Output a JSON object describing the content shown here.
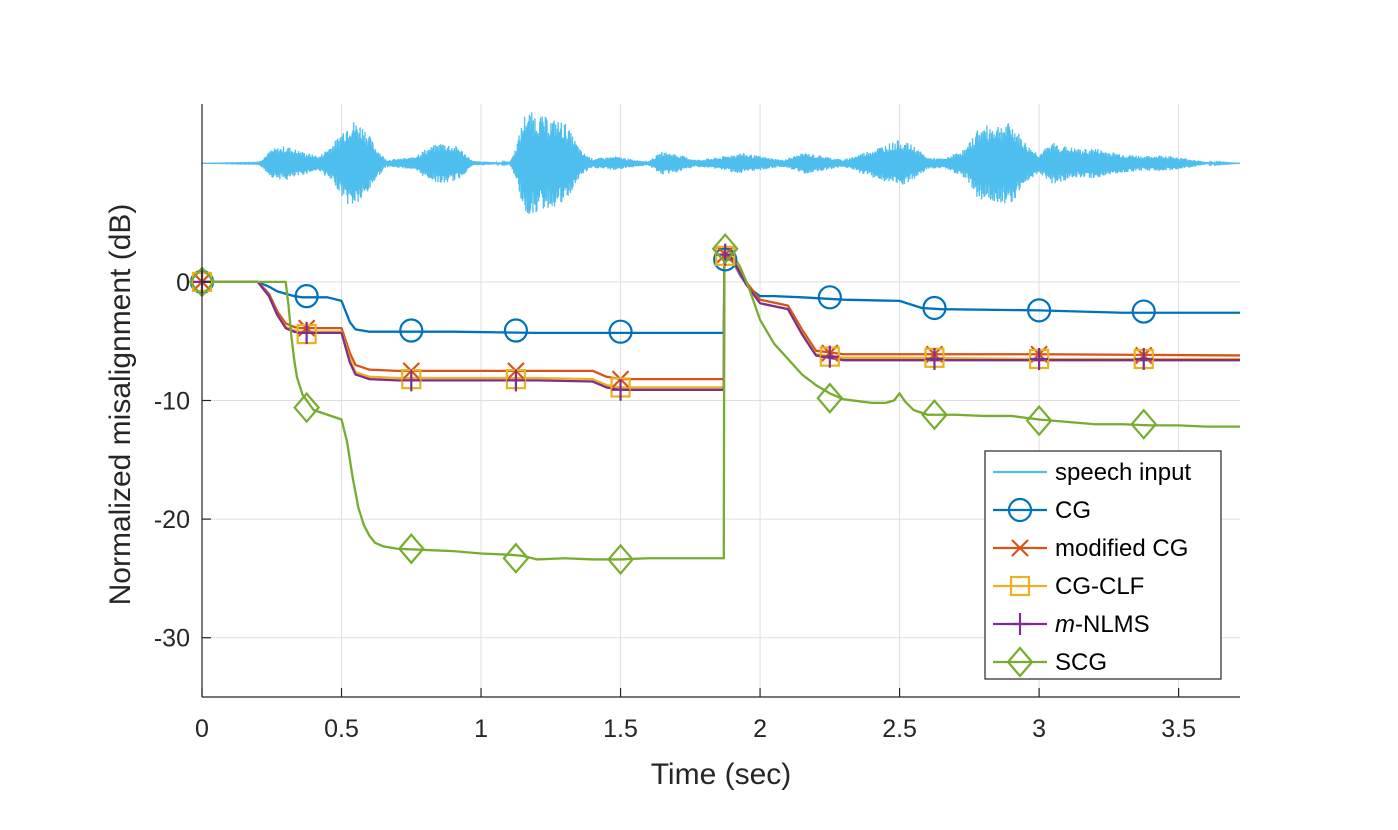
{
  "chart_data": {
    "type": "line",
    "xlabel": "Time (sec)",
    "ylabel": "Normalized misalignment (dB)",
    "xlim": [
      0,
      3.72
    ],
    "ylim": [
      -35,
      15
    ],
    "xticks": [
      0,
      0.5,
      1,
      1.5,
      2,
      2.5,
      3,
      3.5
    ],
    "xtick_labels": [
      "0",
      "0.5",
      "1",
      "1.5",
      "2",
      "2.5",
      "3",
      "3.5"
    ],
    "yticks": [
      0,
      -10,
      -20,
      -30
    ],
    "ytick_labels": [
      "0",
      "-10",
      "-20",
      "-30"
    ],
    "grid": true,
    "legend_position": "bottom-right",
    "speech_input": {
      "name": "speech input",
      "color": "#4DBEEE",
      "baseline_db": 10,
      "envelope": [
        [
          0.0,
          0.0
        ],
        [
          0.2,
          0.05
        ],
        [
          0.25,
          1.2
        ],
        [
          0.3,
          1.5
        ],
        [
          0.36,
          1.0
        ],
        [
          0.42,
          0.6
        ],
        [
          0.48,
          2.0
        ],
        [
          0.53,
          3.8
        ],
        [
          0.58,
          3.2
        ],
        [
          0.62,
          1.5
        ],
        [
          0.66,
          0.3
        ],
        [
          0.75,
          0.5
        ],
        [
          0.8,
          1.2
        ],
        [
          0.86,
          1.8
        ],
        [
          0.92,
          1.4
        ],
        [
          0.97,
          0.2
        ],
        [
          1.1,
          0.05
        ],
        [
          1.12,
          1.0
        ],
        [
          1.16,
          4.5
        ],
        [
          1.22,
          4.0
        ],
        [
          1.3,
          3.5
        ],
        [
          1.36,
          1.0
        ],
        [
          1.4,
          0.4
        ],
        [
          1.48,
          0.6
        ],
        [
          1.55,
          0.3
        ],
        [
          1.6,
          0.2
        ],
        [
          1.65,
          1.0
        ],
        [
          1.7,
          0.8
        ],
        [
          1.77,
          0.3
        ],
        [
          1.85,
          0.5
        ],
        [
          1.93,
          0.9
        ],
        [
          2.0,
          0.6
        ],
        [
          2.08,
          0.3
        ],
        [
          2.16,
          0.9
        ],
        [
          2.23,
          0.6
        ],
        [
          2.3,
          0.3
        ],
        [
          2.38,
          1.0
        ],
        [
          2.45,
          1.6
        ],
        [
          2.5,
          2.0
        ],
        [
          2.55,
          1.5
        ],
        [
          2.6,
          0.5
        ],
        [
          2.66,
          0.4
        ],
        [
          2.74,
          1.3
        ],
        [
          2.78,
          3.0
        ],
        [
          2.83,
          3.3
        ],
        [
          2.9,
          3.4
        ],
        [
          2.96,
          1.5
        ],
        [
          3.0,
          0.8
        ],
        [
          3.05,
          1.8
        ],
        [
          3.1,
          1.4
        ],
        [
          3.15,
          1.2
        ],
        [
          3.2,
          1.3
        ],
        [
          3.25,
          1.0
        ],
        [
          3.3,
          0.8
        ],
        [
          3.38,
          0.6
        ],
        [
          3.45,
          0.7
        ],
        [
          3.5,
          0.5
        ],
        [
          3.56,
          0.3
        ],
        [
          3.6,
          0.1
        ],
        [
          3.72,
          0.0
        ]
      ]
    },
    "series": [
      {
        "name": "CG",
        "color": "#0072BD",
        "marker": "circle",
        "x": [
          0,
          0.2,
          0.24,
          0.27,
          0.3,
          0.33,
          0.36,
          0.45,
          0.5,
          0.53,
          0.55,
          0.6,
          0.7,
          0.9,
          1.2,
          1.5,
          1.87,
          1.872,
          1.9,
          1.93,
          1.96,
          2.0,
          2.05,
          2.15,
          2.3,
          2.5,
          2.58,
          2.65,
          3.0,
          3.3,
          3.72
        ],
        "y": [
          0,
          0,
          -0.4,
          -0.8,
          -1.0,
          -1.2,
          -1.3,
          -1.3,
          -1.6,
          -3.4,
          -4.0,
          -4.2,
          -4.2,
          -4.2,
          -4.3,
          -4.3,
          -4.3,
          2.0,
          1.8,
          0.5,
          -0.5,
          -1.2,
          -1.2,
          -1.3,
          -1.5,
          -1.6,
          -2.2,
          -2.3,
          -2.4,
          -2.6,
          -2.6
        ],
        "marker_x": [
          0,
          0.375,
          0.75,
          1.125,
          1.5,
          1.875,
          2.25,
          2.625,
          3.0,
          3.375
        ],
        "marker_y": [
          0,
          -1.2,
          -4.1,
          -4.1,
          -4.2,
          1.9,
          -1.3,
          -2.2,
          -2.4,
          -2.5
        ]
      },
      {
        "name": "modified CG",
        "color": "#D95319",
        "marker": "x",
        "x": [
          0,
          0.2,
          0.24,
          0.27,
          0.3,
          0.33,
          0.35,
          0.5,
          0.53,
          0.55,
          0.6,
          0.7,
          0.9,
          1.2,
          1.4,
          1.45,
          1.5,
          1.87,
          1.872,
          1.9,
          1.95,
          2.0,
          2.1,
          2.15,
          2.2,
          2.3,
          2.5,
          3.0,
          3.72
        ],
        "y": [
          0,
          0,
          -1.0,
          -2.5,
          -3.5,
          -3.8,
          -3.9,
          -3.9,
          -6.0,
          -7.0,
          -7.4,
          -7.5,
          -7.5,
          -7.5,
          -7.5,
          -8.0,
          -8.2,
          -8.2,
          2.4,
          2.0,
          0.0,
          -1.5,
          -2.0,
          -4.0,
          -5.8,
          -6.1,
          -6.1,
          -6.1,
          -6.2
        ],
        "marker_x": [
          0,
          0.375,
          0.75,
          1.125,
          1.5,
          1.875,
          2.25,
          2.625,
          3.0,
          3.375
        ],
        "marker_y": [
          0,
          -3.9,
          -7.5,
          -7.5,
          -8.2,
          2.3,
          -6.0,
          -6.1,
          -6.1,
          -6.2
        ]
      },
      {
        "name": "CG-CLF",
        "color": "#EDB120",
        "marker": "square",
        "x": [
          0,
          0.2,
          0.24,
          0.27,
          0.3,
          0.33,
          0.35,
          0.5,
          0.53,
          0.55,
          0.6,
          0.7,
          0.9,
          1.2,
          1.4,
          1.45,
          1.5,
          1.87,
          1.872,
          1.9,
          1.95,
          2.0,
          2.1,
          2.15,
          2.2,
          2.3,
          2.5,
          3.0,
          3.72
        ],
        "y": [
          0,
          0,
          -1.2,
          -2.8,
          -3.8,
          -4.1,
          -4.2,
          -4.2,
          -6.5,
          -7.6,
          -8.0,
          -8.1,
          -8.1,
          -8.1,
          -8.2,
          -8.7,
          -8.9,
          -8.9,
          2.2,
          1.8,
          -0.2,
          -1.8,
          -2.3,
          -4.3,
          -6.1,
          -6.4,
          -6.4,
          -6.5,
          -6.5
        ],
        "marker_x": [
          0,
          0.375,
          0.75,
          1.125,
          1.5,
          1.875,
          2.25,
          2.625,
          3.0,
          3.375
        ],
        "marker_y": [
          0,
          -4.4,
          -8.2,
          -8.2,
          -8.9,
          2.2,
          -6.3,
          -6.4,
          -6.5,
          -6.5
        ]
      },
      {
        "name": "m-NLMS",
        "name_italic_prefix": "m",
        "name_rest": "-NLMS",
        "color": "#7E2F8E",
        "marker": "plus",
        "x": [
          0,
          0.2,
          0.24,
          0.27,
          0.3,
          0.33,
          0.35,
          0.5,
          0.53,
          0.55,
          0.6,
          0.7,
          0.9,
          1.2,
          1.4,
          1.45,
          1.5,
          1.87,
          1.872,
          1.9,
          1.95,
          2.0,
          2.1,
          2.15,
          2.2,
          2.3,
          2.5,
          3.0,
          3.72
        ],
        "y": [
          0,
          0,
          -1.2,
          -2.8,
          -3.9,
          -4.2,
          -4.3,
          -4.3,
          -6.8,
          -7.8,
          -8.2,
          -8.3,
          -8.3,
          -8.3,
          -8.4,
          -8.9,
          -9.1,
          -9.1,
          2.3,
          1.9,
          -0.2,
          -1.8,
          -2.3,
          -4.4,
          -6.2,
          -6.6,
          -6.6,
          -6.6,
          -6.6
        ],
        "marker_x": [
          0,
          0.375,
          0.75,
          1.125,
          1.5,
          1.875,
          2.25,
          2.625,
          3.0,
          3.375
        ],
        "marker_y": [
          0,
          -4.3,
          -8.3,
          -8.3,
          -9.1,
          2.3,
          -6.3,
          -6.5,
          -6.5,
          -6.5
        ]
      },
      {
        "name": "SCG",
        "color": "#77AC30",
        "marker": "diamond",
        "x": [
          0,
          0.3,
          0.31,
          0.32,
          0.33,
          0.34,
          0.36,
          0.4,
          0.45,
          0.5,
          0.52,
          0.54,
          0.56,
          0.58,
          0.6,
          0.62,
          0.65,
          0.7,
          0.8,
          0.9,
          1.0,
          1.1,
          1.15,
          1.2,
          1.3,
          1.4,
          1.5,
          1.6,
          1.7,
          1.87,
          1.872,
          1.88,
          1.9,
          1.93,
          1.96,
          2.0,
          2.05,
          2.1,
          2.15,
          2.2,
          2.25,
          2.3,
          2.4,
          2.45,
          2.48,
          2.5,
          2.52,
          2.55,
          2.6,
          2.7,
          2.8,
          2.9,
          3.0,
          3.1,
          3.2,
          3.3,
          3.4,
          3.5,
          3.6,
          3.72
        ],
        "y": [
          0,
          0,
          -2.0,
          -4.5,
          -6.5,
          -8.0,
          -9.5,
          -10.8,
          -11.2,
          -11.6,
          -13.5,
          -16.5,
          -19.0,
          -20.5,
          -21.4,
          -22.0,
          -22.3,
          -22.5,
          -22.6,
          -22.7,
          -22.9,
          -23.0,
          -23.1,
          -23.4,
          -23.3,
          -23.4,
          -23.4,
          -23.3,
          -23.3,
          -23.3,
          2.9,
          2.8,
          2.4,
          1.2,
          -0.5,
          -3.2,
          -5.2,
          -6.5,
          -7.8,
          -8.7,
          -9.4,
          -9.9,
          -10.2,
          -10.2,
          -10.0,
          -9.4,
          -10.1,
          -10.8,
          -11.2,
          -11.2,
          -11.3,
          -11.3,
          -11.6,
          -11.8,
          -12.0,
          -12.0,
          -12.1,
          -12.1,
          -12.2,
          -12.2
        ],
        "marker_x": [
          0,
          0.375,
          0.75,
          1.125,
          1.5,
          1.875,
          2.25,
          2.625,
          3.0,
          3.375
        ],
        "marker_y": [
          0,
          -10.6,
          -22.5,
          -23.3,
          -23.4,
          2.8,
          -9.8,
          -11.2,
          -11.7,
          -12.0
        ]
      }
    ]
  }
}
